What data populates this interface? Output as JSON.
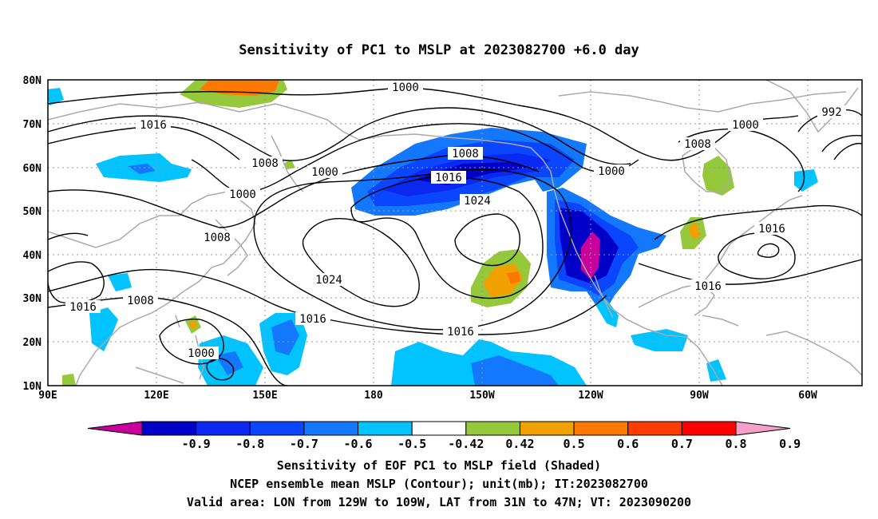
{
  "title": "Sensitivity of PC1 to MSLP at 2023082700 +6.0 day",
  "axes": {
    "lon_labels": [
      "90E",
      "120E",
      "150E",
      "180",
      "150W",
      "120W",
      "90W",
      "60W"
    ],
    "lat_labels": [
      "80N",
      "70N",
      "60N",
      "50N",
      "40N",
      "30N",
      "20N",
      "10N"
    ]
  },
  "contour_labels": [
    {
      "text": "1000"
    },
    {
      "text": "992"
    },
    {
      "text": "1016"
    },
    {
      "text": "1000"
    },
    {
      "text": "1008"
    },
    {
      "text": "1008"
    },
    {
      "text": "1000"
    },
    {
      "text": "1000"
    },
    {
      "text": "1016"
    },
    {
      "text": "1008"
    },
    {
      "text": "1000"
    },
    {
      "text": "1024"
    },
    {
      "text": "1008"
    },
    {
      "text": "1016"
    },
    {
      "text": "1024"
    },
    {
      "text": "1016"
    },
    {
      "text": "1008"
    },
    {
      "text": "1016"
    },
    {
      "text": "1016"
    },
    {
      "text": "1000"
    },
    {
      "text": "1016"
    }
  ],
  "colorbar": {
    "labels": [
      "-0.9",
      "-0.8",
      "-0.7",
      "-0.6",
      "-0.5",
      "-0.42",
      "0.42",
      "0.5",
      "0.6",
      "0.7",
      "0.8",
      "0.9"
    ],
    "colors": [
      "#c8009c",
      "#0000c8",
      "#0a28f0",
      "#0a46ff",
      "#1478ff",
      "#00c3ff",
      "#ffffff",
      "#96c83c",
      "#f0a000",
      "#ff7800",
      "#ff3c00",
      "#ff0000",
      "#f5a0c8"
    ]
  },
  "footer": {
    "line1": "Sensitivity of EOF PC1 to MSLP field (Shaded)",
    "line2": "NCEP ensemble mean MSLP (Contour); unit(mb); IT:2023082700",
    "line3": "Valid area: LON from 129W to 109W, LAT from 31N to 47N; VT: 2023090200"
  },
  "colors": {
    "coastline": "#aaaaaa",
    "contour": "#000000",
    "grid": "#999999"
  }
}
